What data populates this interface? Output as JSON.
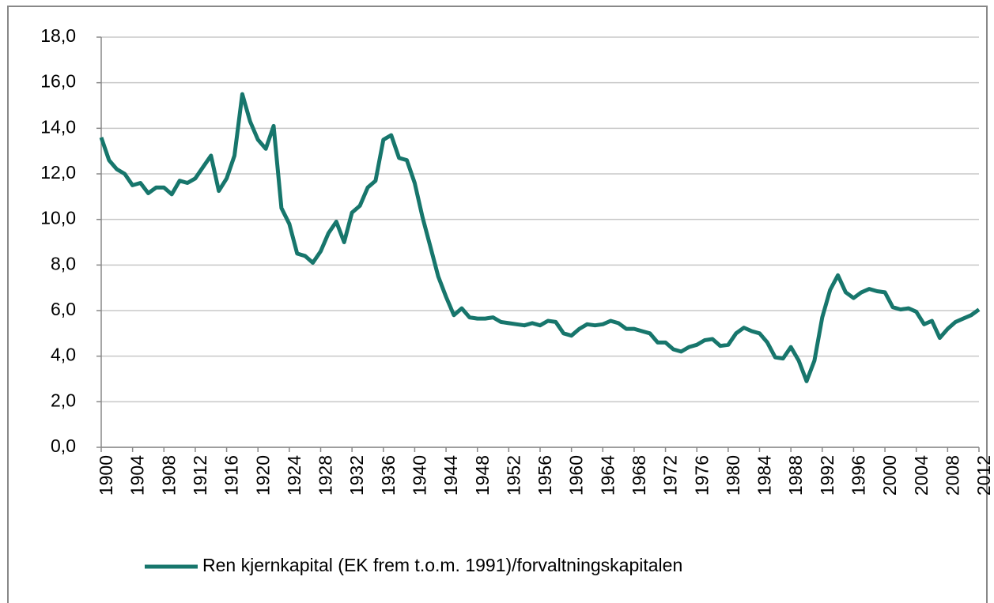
{
  "chart_data": {
    "type": "line",
    "x": [
      1900,
      1901,
      1902,
      1903,
      1904,
      1905,
      1906,
      1907,
      1908,
      1909,
      1910,
      1911,
      1912,
      1913,
      1914,
      1915,
      1916,
      1917,
      1918,
      1919,
      1920,
      1921,
      1922,
      1923,
      1924,
      1925,
      1926,
      1927,
      1928,
      1929,
      1930,
      1931,
      1932,
      1933,
      1934,
      1935,
      1936,
      1937,
      1938,
      1939,
      1940,
      1941,
      1942,
      1943,
      1944,
      1945,
      1946,
      1947,
      1948,
      1949,
      1950,
      1951,
      1952,
      1953,
      1954,
      1955,
      1956,
      1957,
      1958,
      1959,
      1960,
      1961,
      1962,
      1963,
      1964,
      1965,
      1966,
      1967,
      1968,
      1969,
      1970,
      1971,
      1972,
      1973,
      1974,
      1975,
      1976,
      1977,
      1978,
      1979,
      1980,
      1981,
      1982,
      1983,
      1984,
      1985,
      1986,
      1987,
      1988,
      1989,
      1990,
      1991,
      1992,
      1993,
      1994,
      1995,
      1996,
      1997,
      1998,
      1999,
      2000,
      2001,
      2002,
      2003,
      2004,
      2005,
      2006,
      2007,
      2008,
      2009,
      2010,
      2011,
      2012
    ],
    "series": [
      {
        "name": "Ren kjernkapital (EK frem t.o.m. 1991)/forvaltningskapitalen",
        "color": "#17766c",
        "values": [
          13.6,
          12.6,
          12.2,
          12.0,
          11.5,
          11.6,
          11.15,
          11.4,
          11.4,
          11.1,
          11.7,
          11.6,
          11.8,
          12.3,
          12.8,
          11.25,
          11.8,
          12.8,
          15.5,
          14.3,
          13.5,
          13.1,
          14.1,
          10.5,
          9.8,
          8.5,
          8.4,
          8.1,
          8.6,
          9.4,
          9.9,
          9.0,
          10.3,
          10.6,
          11.4,
          11.7,
          13.5,
          13.7,
          12.7,
          12.6,
          11.6,
          10.1,
          8.8,
          7.5,
          6.6,
          5.8,
          6.1,
          5.7,
          5.65,
          5.65,
          5.7,
          5.5,
          5.45,
          5.4,
          5.35,
          5.45,
          5.35,
          5.55,
          5.5,
          5.0,
          4.9,
          5.2,
          5.4,
          5.35,
          5.4,
          5.55,
          5.45,
          5.2,
          5.2,
          5.1,
          5.0,
          4.6,
          4.6,
          4.3,
          4.2,
          4.4,
          4.5,
          4.7,
          4.75,
          4.45,
          4.5,
          5.0,
          5.25,
          5.1,
          5.0,
          4.6,
          3.95,
          3.9,
          4.4,
          3.8,
          2.9,
          3.8,
          5.7,
          6.9,
          7.55,
          6.8,
          6.55,
          6.8,
          6.95,
          6.85,
          6.8,
          6.15,
          6.05,
          6.1,
          5.95,
          5.4,
          5.55,
          4.8,
          5.2,
          5.5,
          5.65,
          5.8,
          6.05
        ]
      }
    ],
    "xlim": [
      1900,
      2012
    ],
    "xticks": [
      1900,
      1904,
      1908,
      1912,
      1916,
      1920,
      1924,
      1928,
      1932,
      1936,
      1940,
      1944,
      1948,
      1952,
      1956,
      1960,
      1964,
      1968,
      1972,
      1976,
      1980,
      1984,
      1988,
      1992,
      1996,
      2000,
      2004,
      2008,
      2012
    ],
    "ylim": [
      0,
      18
    ],
    "yticks": [
      {
        "value": 0,
        "label": "0,0"
      },
      {
        "value": 2,
        "label": "2,0"
      },
      {
        "value": 4,
        "label": "4,0"
      },
      {
        "value": 6,
        "label": "6,0"
      },
      {
        "value": 8,
        "label": "8,0"
      },
      {
        "value": 10,
        "label": "10,0"
      },
      {
        "value": 12,
        "label": "12,0"
      },
      {
        "value": 14,
        "label": "14,0"
      },
      {
        "value": 16,
        "label": "16,0"
      },
      {
        "value": 18,
        "label": "18,0"
      }
    ],
    "grid": true
  }
}
